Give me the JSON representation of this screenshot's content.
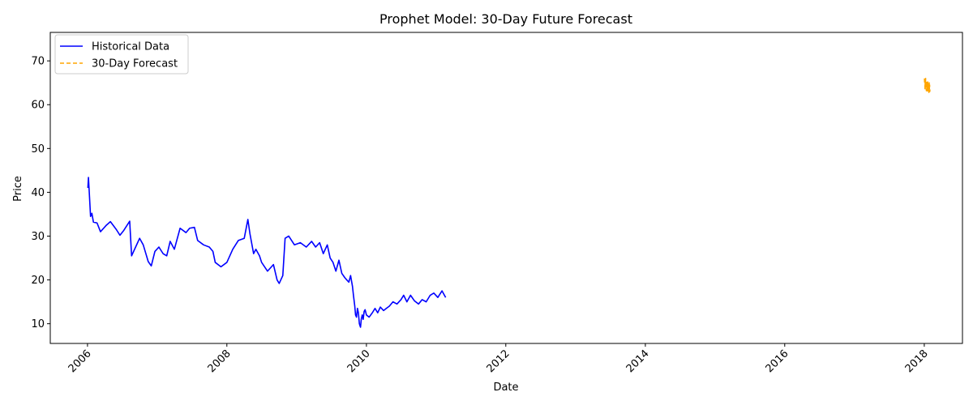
{
  "chart_data": {
    "type": "line",
    "title": "Prophet Model: 30-Day Future Forecast",
    "xlabel": "Date",
    "ylabel": "Price",
    "xlim": [
      "2005-06-20",
      "2018-07-20"
    ],
    "ylim": [
      5.5,
      76.5
    ],
    "x_ticks": [
      "2006",
      "2008",
      "2010",
      "2012",
      "2014",
      "2016",
      "2018"
    ],
    "y_ticks": [
      10,
      20,
      30,
      40,
      50,
      60,
      70
    ],
    "grid": false,
    "legend_position": "top-left",
    "series": [
      {
        "name": "Historical Data",
        "color": "#0000ff",
        "style": "solid",
        "points": [
          [
            "2006-01-03",
            41.0
          ],
          [
            "2006-01-06",
            43.4
          ],
          [
            "2006-01-10",
            40.2
          ],
          [
            "2006-01-17",
            34.5
          ],
          [
            "2006-01-24",
            35.2
          ],
          [
            "2006-02-01",
            33.2
          ],
          [
            "2006-02-20",
            33.0
          ],
          [
            "2006-03-10",
            31.0
          ],
          [
            "2006-04-10",
            32.5
          ],
          [
            "2006-05-01",
            33.3
          ],
          [
            "2006-06-01",
            31.5
          ],
          [
            "2006-06-20",
            30.2
          ],
          [
            "2006-07-10",
            31.3
          ],
          [
            "2006-08-10",
            33.4
          ],
          [
            "2006-08-20",
            25.5
          ],
          [
            "2006-09-10",
            27.5
          ],
          [
            "2006-10-01",
            29.5
          ],
          [
            "2006-10-20",
            28.0
          ],
          [
            "2006-11-15",
            24.2
          ],
          [
            "2006-12-01",
            23.2
          ],
          [
            "2006-12-20",
            26.5
          ],
          [
            "2007-01-10",
            27.5
          ],
          [
            "2007-02-01",
            26.0
          ],
          [
            "2007-02-20",
            25.5
          ],
          [
            "2007-03-10",
            28.8
          ],
          [
            "2007-04-01",
            27.0
          ],
          [
            "2007-05-01",
            31.8
          ],
          [
            "2007-06-01",
            30.8
          ],
          [
            "2007-06-20",
            31.8
          ],
          [
            "2007-07-15",
            32.0
          ],
          [
            "2007-08-01",
            29.0
          ],
          [
            "2007-09-01",
            28.0
          ],
          [
            "2007-10-01",
            27.5
          ],
          [
            "2007-10-20",
            26.5
          ],
          [
            "2007-11-01",
            24.0
          ],
          [
            "2007-12-01",
            23.0
          ],
          [
            "2008-01-01",
            24.0
          ],
          [
            "2008-02-01",
            27.0
          ],
          [
            "2008-03-01",
            29.0
          ],
          [
            "2008-04-01",
            29.5
          ],
          [
            "2008-04-20",
            33.8
          ],
          [
            "2008-05-01",
            30.5
          ],
          [
            "2008-05-20",
            26.0
          ],
          [
            "2008-06-01",
            27.0
          ],
          [
            "2008-06-20",
            25.5
          ],
          [
            "2008-07-01",
            24.0
          ],
          [
            "2008-08-01",
            22.0
          ],
          [
            "2008-09-01",
            23.5
          ],
          [
            "2008-09-20",
            20.0
          ],
          [
            "2008-10-01",
            19.2
          ],
          [
            "2008-10-20",
            21.0
          ],
          [
            "2008-11-01",
            29.5
          ],
          [
            "2008-11-20",
            30.0
          ],
          [
            "2008-12-20",
            28.0
          ],
          [
            "2009-01-20",
            28.5
          ],
          [
            "2009-02-20",
            27.5
          ],
          [
            "2009-03-20",
            28.8
          ],
          [
            "2009-04-10",
            27.5
          ],
          [
            "2009-05-01",
            28.5
          ],
          [
            "2009-05-20",
            26.0
          ],
          [
            "2009-06-10",
            28.0
          ],
          [
            "2009-06-25",
            25.0
          ],
          [
            "2009-07-10",
            24.0
          ],
          [
            "2009-07-25",
            22.0
          ],
          [
            "2009-08-10",
            24.5
          ],
          [
            "2009-08-25",
            21.5
          ],
          [
            "2009-09-10",
            20.5
          ],
          [
            "2009-09-20",
            20.0
          ],
          [
            "2009-10-01",
            19.5
          ],
          [
            "2009-10-10",
            21.0
          ],
          [
            "2009-10-20",
            18.5
          ],
          [
            "2009-10-25",
            16.5
          ],
          [
            "2009-11-01",
            14.0
          ],
          [
            "2009-11-05",
            12.0
          ],
          [
            "2009-11-10",
            11.5
          ],
          [
            "2009-11-15",
            13.5
          ],
          [
            "2009-11-20",
            12.5
          ],
          [
            "2009-11-25",
            10.0
          ],
          [
            "2009-12-01",
            9.2
          ],
          [
            "2009-12-05",
            11.0
          ],
          [
            "2009-12-10",
            12.0
          ],
          [
            "2009-12-15",
            11.0
          ],
          [
            "2009-12-20",
            12.8
          ],
          [
            "2009-12-25",
            13.2
          ],
          [
            "2010-01-01",
            12.0
          ],
          [
            "2010-01-15",
            11.5
          ],
          [
            "2010-02-01",
            12.5
          ],
          [
            "2010-02-15",
            13.5
          ],
          [
            "2010-03-01",
            12.5
          ],
          [
            "2010-03-15",
            13.8
          ],
          [
            "2010-04-01",
            13.0
          ],
          [
            "2010-04-15",
            13.5
          ],
          [
            "2010-05-01",
            14.0
          ],
          [
            "2010-05-20",
            15.0
          ],
          [
            "2010-06-10",
            14.5
          ],
          [
            "2010-07-01",
            15.5
          ],
          [
            "2010-07-15",
            16.5
          ],
          [
            "2010-08-01",
            15.0
          ],
          [
            "2010-08-20",
            16.5
          ],
          [
            "2010-09-10",
            15.2
          ],
          [
            "2010-10-01",
            14.5
          ],
          [
            "2010-10-20",
            15.5
          ],
          [
            "2010-11-10",
            15.0
          ],
          [
            "2010-12-01",
            16.5
          ],
          [
            "2010-12-20",
            17.0
          ],
          [
            "2011-01-10",
            16.0
          ],
          [
            "2011-02-01",
            17.5
          ],
          [
            "2011-02-20",
            16.0
          ]
        ]
      },
      {
        "name": "30-Day Forecast",
        "color": "#ffa500",
        "style": "dashed",
        "points": [
          [
            "2018-01-02",
            66.0
          ],
          [
            "2018-01-03",
            64.8
          ],
          [
            "2018-01-04",
            65.5
          ],
          [
            "2018-01-05",
            63.5
          ],
          [
            "2018-01-06",
            65.8
          ],
          [
            "2018-01-07",
            64.2
          ],
          [
            "2018-01-08",
            66.0
          ],
          [
            "2018-01-09",
            63.8
          ],
          [
            "2018-01-10",
            65.2
          ],
          [
            "2018-01-11",
            64.5
          ],
          [
            "2018-01-12",
            63.2
          ],
          [
            "2018-01-13",
            65.5
          ],
          [
            "2018-01-14",
            64.0
          ],
          [
            "2018-01-15",
            65.0
          ],
          [
            "2018-01-16",
            63.5
          ],
          [
            "2018-01-17",
            64.8
          ],
          [
            "2018-01-18",
            63.0
          ],
          [
            "2018-01-19",
            65.2
          ],
          [
            "2018-01-20",
            64.2
          ],
          [
            "2018-01-21",
            63.8
          ],
          [
            "2018-01-22",
            65.0
          ],
          [
            "2018-01-23",
            63.2
          ],
          [
            "2018-01-24",
            64.5
          ],
          [
            "2018-01-25",
            62.8
          ],
          [
            "2018-01-26",
            64.0
          ],
          [
            "2018-01-27",
            65.0
          ],
          [
            "2018-01-28",
            63.5
          ],
          [
            "2018-01-29",
            64.5
          ],
          [
            "2018-01-30",
            63.0
          ],
          [
            "2018-01-31",
            63.8
          ]
        ]
      }
    ]
  }
}
